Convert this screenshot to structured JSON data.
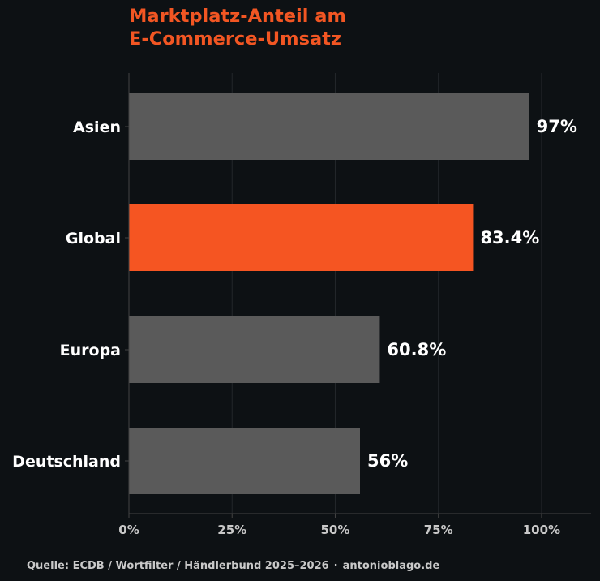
{
  "title_lines": [
    "Marktplatz-Anteil am",
    "E-Commerce-Umsatz"
  ],
  "source": {
    "text": "Quelle: ECDB / Wortfilter / Händlerbund 2025–2026",
    "separator": "·",
    "site": "antonioblago.de"
  },
  "colors": {
    "background": "#0d1114",
    "accent": "#f55522",
    "bar_default": "#5a5a5a",
    "title": "#f25623",
    "label": "#ffffff",
    "tick": "#c8c8c8",
    "grid": "#23272b",
    "axis": "#444444"
  },
  "chart_data": {
    "type": "bar",
    "orientation": "horizontal",
    "categories": [
      "Asien",
      "Global",
      "Europa",
      "Deutschland"
    ],
    "values": [
      97,
      83.4,
      60.8,
      56
    ],
    "data_labels": [
      "97%",
      "83.4%",
      "60.8%",
      "56%"
    ],
    "highlight": "Global",
    "xlim": [
      0,
      112
    ],
    "xticks": [
      0,
      25,
      50,
      75,
      100
    ],
    "xtick_labels": [
      "0%",
      "25%",
      "50%",
      "75%",
      "100%"
    ],
    "grid": "vertical",
    "xlabel": "",
    "ylabel": ""
  }
}
